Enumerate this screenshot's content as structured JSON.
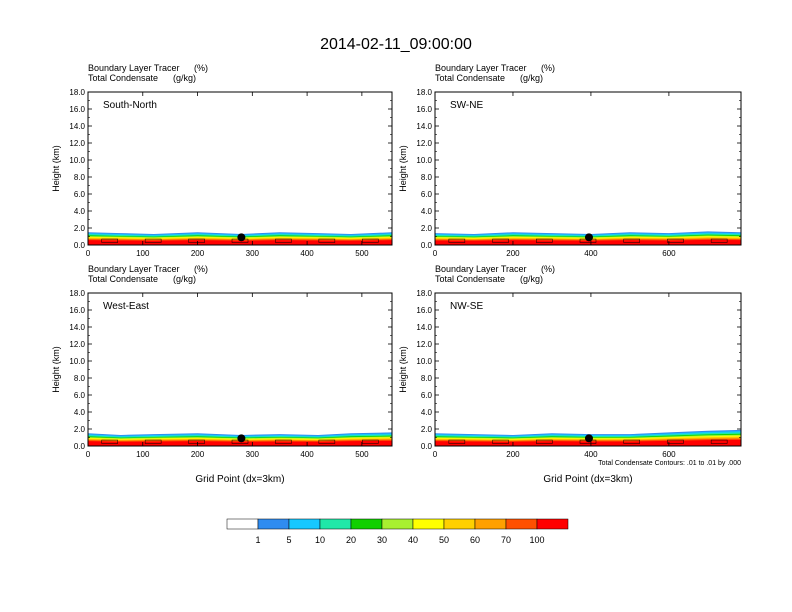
{
  "figure": {
    "title": "2014-02-11_09:00:00"
  },
  "colors": {
    "levels": [
      "#ffffff",
      "#2f8cf0",
      "#16c8ff",
      "#20e8a8",
      "#10d000",
      "#a8f030",
      "#ffff00",
      "#ffd000",
      "#ffa000",
      "#ff5000",
      "#ff0000"
    ]
  },
  "colorbar": {
    "labels": [
      "1",
      "5",
      "10",
      "20",
      "30",
      "40",
      "50",
      "60",
      "70",
      "100"
    ]
  },
  "chart_data": [
    {
      "type": "area",
      "panel_label": "South-North",
      "field_label": "Boundary Layer Tracer",
      "field_units": "(%)",
      "contour_label": "Total Condensate",
      "contour_units": "(g/kg)",
      "ylabel": "Height (km)",
      "xlabel": "",
      "xlim": [
        0,
        555
      ],
      "ylim": [
        0,
        18
      ],
      "xticks": [
        0,
        100,
        200,
        300,
        400,
        500
      ],
      "yticks": [
        0.0,
        2.0,
        4.0,
        6.0,
        8.0,
        10.0,
        12.0,
        14.0,
        16.0,
        18.0
      ],
      "ytick_labels": [
        "0.0",
        "2.0",
        "4.0",
        "6.0",
        "8.0",
        "10.0",
        "12.0",
        "14.0",
        "16.0",
        "18.0"
      ],
      "marker_x": 280,
      "marker_y": 0.9,
      "boundary_layer_top": {
        "x": [
          0,
          60,
          120,
          200,
          280,
          350,
          420,
          480,
          555
        ],
        "y": [
          1.5,
          1.4,
          1.3,
          1.5,
          1.3,
          1.5,
          1.4,
          1.3,
          1.5
        ]
      },
      "footnote": ""
    },
    {
      "type": "area",
      "panel_label": "SW-NE",
      "field_label": "Boundary Layer Tracer",
      "field_units": "(%)",
      "contour_label": "Total Condensate",
      "contour_units": "(g/kg)",
      "ylabel": "Height (km)",
      "xlabel": "",
      "xlim": [
        0,
        785
      ],
      "ylim": [
        0,
        18
      ],
      "xticks": [
        0,
        200,
        400,
        600
      ],
      "yticks": [
        0.0,
        2.0,
        4.0,
        6.0,
        8.0,
        10.0,
        12.0,
        14.0,
        16.0,
        18.0
      ],
      "ytick_labels": [
        "0.0",
        "2.0",
        "4.0",
        "6.0",
        "8.0",
        "10.0",
        "12.0",
        "14.0",
        "16.0",
        "18.0"
      ],
      "marker_x": 395,
      "marker_y": 0.9,
      "boundary_layer_top": {
        "x": [
          0,
          100,
          200,
          300,
          400,
          500,
          600,
          700,
          785
        ],
        "y": [
          1.4,
          1.3,
          1.5,
          1.4,
          1.3,
          1.5,
          1.4,
          1.6,
          1.5
        ]
      },
      "footnote": ""
    },
    {
      "type": "area",
      "panel_label": "West-East",
      "field_label": "Boundary Layer Tracer",
      "field_units": "(%)",
      "contour_label": "Total Condensate",
      "contour_units": "(g/kg)",
      "ylabel": "Height (km)",
      "xlabel": "Grid Point (dx=3km)",
      "xlim": [
        0,
        555
      ],
      "ylim": [
        0,
        18
      ],
      "xticks": [
        0,
        100,
        200,
        300,
        400,
        500
      ],
      "yticks": [
        0.0,
        2.0,
        4.0,
        6.0,
        8.0,
        10.0,
        12.0,
        14.0,
        16.0,
        18.0
      ],
      "ytick_labels": [
        "0.0",
        "2.0",
        "4.0",
        "6.0",
        "8.0",
        "10.0",
        "12.0",
        "14.0",
        "16.0",
        "18.0"
      ],
      "marker_x": 280,
      "marker_y": 0.9,
      "boundary_layer_top": {
        "x": [
          0,
          60,
          120,
          200,
          280,
          350,
          420,
          480,
          555
        ],
        "y": [
          1.5,
          1.3,
          1.4,
          1.5,
          1.3,
          1.4,
          1.3,
          1.5,
          1.6
        ]
      },
      "footnote": ""
    },
    {
      "type": "area",
      "panel_label": "NW-SE",
      "field_label": "Boundary Layer Tracer",
      "field_units": "(%)",
      "contour_label": "Total Condensate",
      "contour_units": "(g/kg)",
      "ylabel": "Height (km)",
      "xlabel": "Grid Point (dx=3km)",
      "xlim": [
        0,
        785
      ],
      "ylim": [
        0,
        18
      ],
      "xticks": [
        0,
        200,
        400,
        600
      ],
      "yticks": [
        0.0,
        2.0,
        4.0,
        6.0,
        8.0,
        10.0,
        12.0,
        14.0,
        16.0,
        18.0
      ],
      "ytick_labels": [
        "0.0",
        "2.0",
        "4.0",
        "6.0",
        "8.0",
        "10.0",
        "12.0",
        "14.0",
        "16.0",
        "18.0"
      ],
      "marker_x": 395,
      "marker_y": 0.9,
      "boundary_layer_top": {
        "x": [
          0,
          100,
          200,
          300,
          400,
          500,
          600,
          700,
          785
        ],
        "y": [
          1.5,
          1.4,
          1.3,
          1.5,
          1.4,
          1.4,
          1.6,
          1.8,
          1.9
        ]
      },
      "footnote": "Total Condensate Contours: .01 to .01 by .000"
    }
  ]
}
